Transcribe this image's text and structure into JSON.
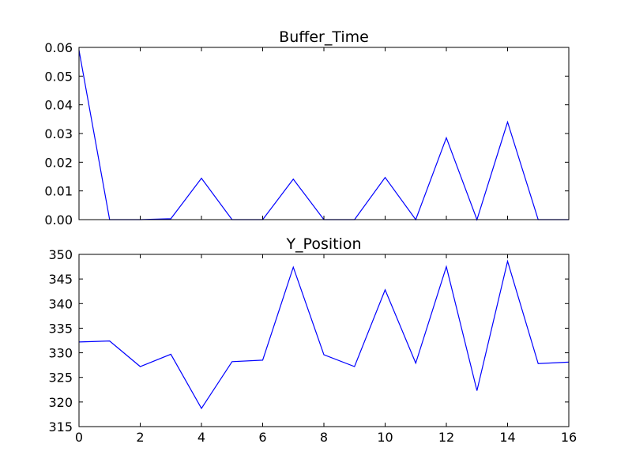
{
  "chart_data": [
    {
      "type": "line",
      "title": "Buffer_Time",
      "xlabel": "",
      "ylabel": "",
      "xlim": [
        0,
        16
      ],
      "ylim": [
        0,
        0.06
      ],
      "yticks": [
        "0.00",
        "0.01",
        "0.02",
        "0.03",
        "0.04",
        "0.05",
        "0.06"
      ],
      "xticks": [],
      "grid": false,
      "line_color": "#0000ff",
      "x": [
        0,
        1,
        2,
        3,
        4,
        5,
        6,
        7,
        8,
        9,
        10,
        11,
        12,
        13,
        14,
        15,
        16
      ],
      "values": [
        0.059,
        0.0,
        0.0,
        0.0003,
        0.0144,
        0.0,
        0.0,
        0.0141,
        0.0,
        0.0,
        0.0147,
        0.0,
        0.0285,
        0.0,
        0.034,
        0.0,
        0.0
      ]
    },
    {
      "type": "line",
      "title": "Y_Position",
      "xlabel": "",
      "ylabel": "",
      "xlim": [
        0,
        16
      ],
      "ylim": [
        315,
        350
      ],
      "yticks": [
        "315",
        "320",
        "325",
        "330",
        "335",
        "340",
        "345",
        "350"
      ],
      "xticks": [
        "0",
        "2",
        "4",
        "6",
        "8",
        "10",
        "12",
        "14",
        "16"
      ],
      "grid": false,
      "line_color": "#0000ff",
      "x": [
        0,
        1,
        2,
        3,
        4,
        5,
        6,
        7,
        8,
        9,
        10,
        11,
        12,
        13,
        14,
        15,
        16
      ],
      "values": [
        332.2,
        332.4,
        327.2,
        329.7,
        318.7,
        328.2,
        328.5,
        347.4,
        329.6,
        327.2,
        342.8,
        327.9,
        347.5,
        322.3,
        348.6,
        327.8,
        328.1
      ]
    }
  ]
}
